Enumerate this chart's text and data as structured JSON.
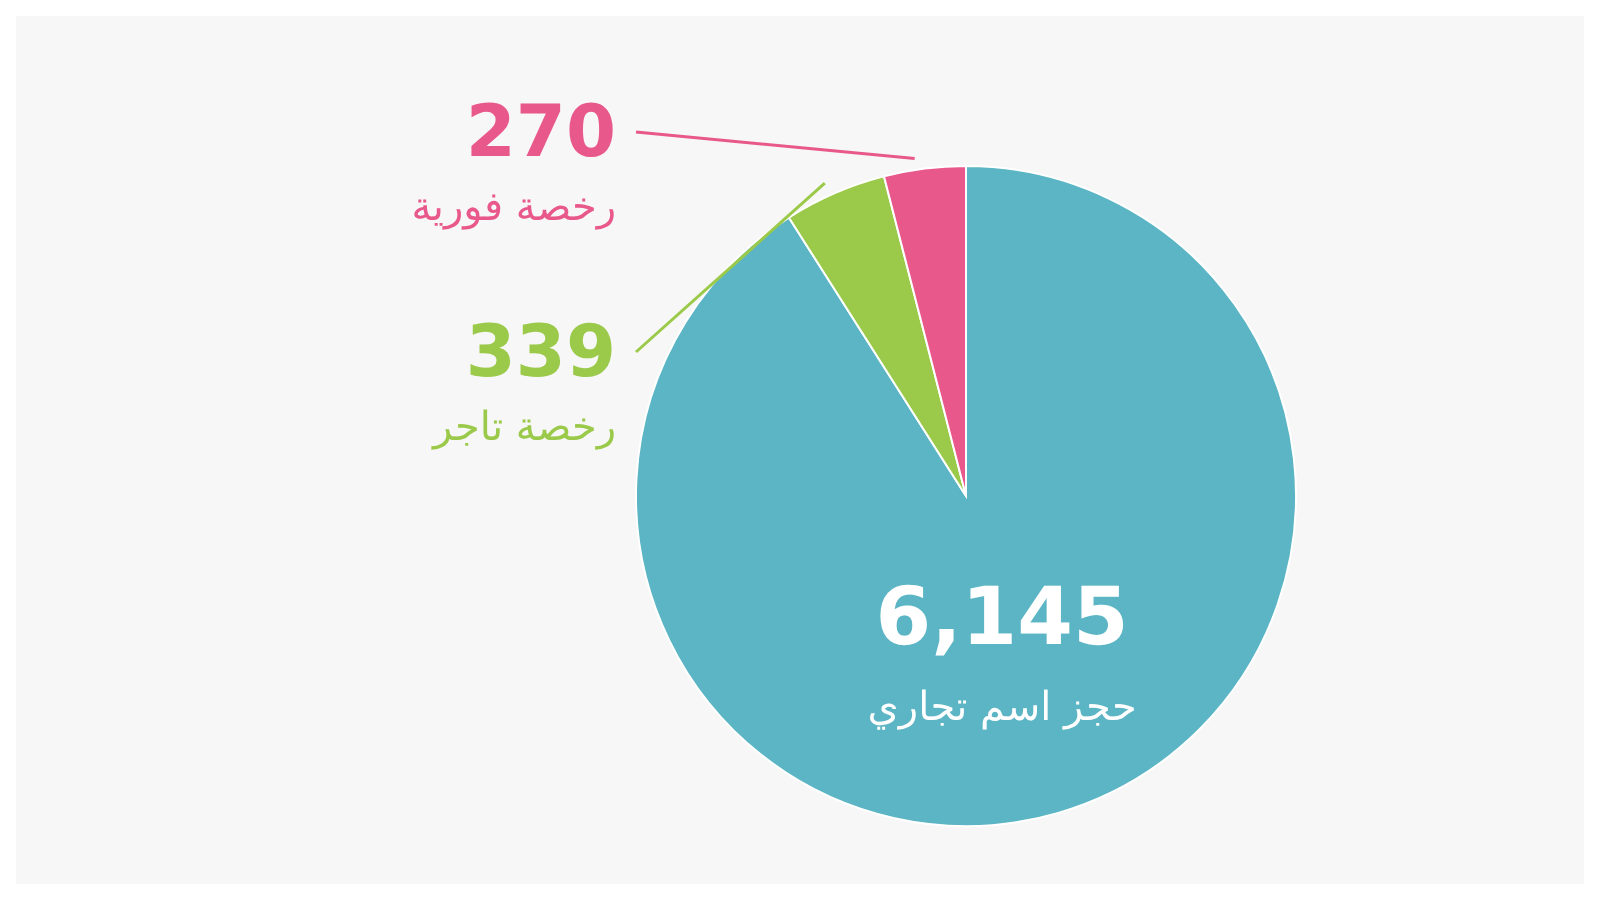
{
  "chart_data": {
    "type": "pie",
    "categories": [
      "حجز اسم تجاري",
      "رخصة تاجر",
      "رخصة فورية"
    ],
    "values": [
      6145,
      339,
      270
    ],
    "colors": [
      "#5bb5c4",
      "#9bc94a",
      "#e9588a"
    ],
    "value_labels": [
      "6,145",
      "339",
      "270"
    ]
  }
}
